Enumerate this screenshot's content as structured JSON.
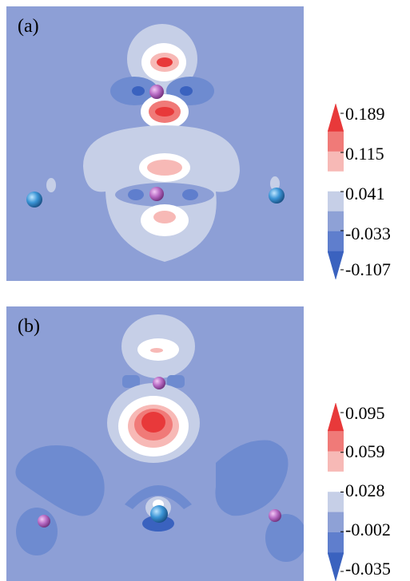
{
  "panels": [
    {
      "label": "(a)",
      "colorbar": {
        "ticks": [
          "0.189",
          "0.115",
          "0.041",
          "-0.033",
          "-0.107"
        ],
        "colors": [
          "#e8393a",
          "#f07a78",
          "#f7b9b6",
          "#ffffff",
          "#c6cfe7",
          "#8ea1d6",
          "#5f7ecd",
          "#3a62bf"
        ]
      }
    },
    {
      "label": "(b)",
      "colorbar": {
        "ticks": [
          "0.095",
          "0.059",
          "0.028",
          "-0.002",
          "-0.035"
        ],
        "colors": [
          "#e8393a",
          "#f07a78",
          "#f7b9b6",
          "#ffffff",
          "#c6cfe7",
          "#8ea1d6",
          "#5f7ecd",
          "#3a62bf"
        ]
      }
    }
  ],
  "colors": {
    "background_level": "#8d9fd6",
    "atom_purple": "#b86bc4",
    "atom_blue": "#3b95d6"
  }
}
